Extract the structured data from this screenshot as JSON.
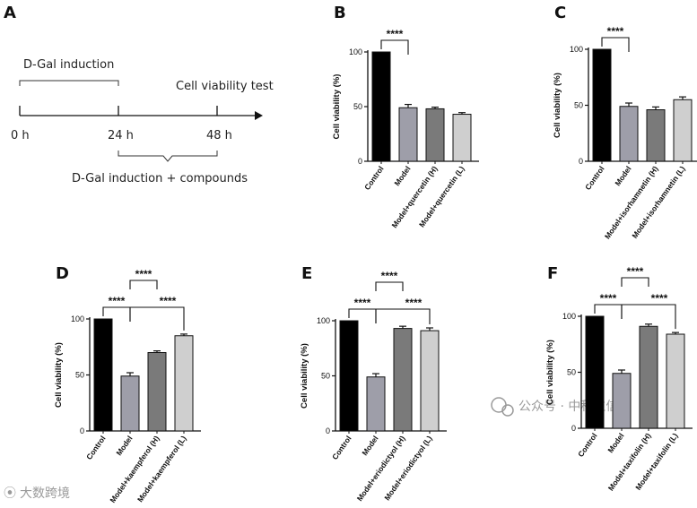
{
  "timeline": {
    "panel_label": "A",
    "induction_label": "D-Gal induction",
    "test_label": "Cell viability test",
    "times": [
      "0 h",
      "24 h",
      "48 h"
    ],
    "combo_label": "D-Gal induction + compounds"
  },
  "chart_data": [
    {
      "panel": "B",
      "type": "bar",
      "ylabel": "Cell viability (%)",
      "ylim": [
        0,
        100
      ],
      "yticks": [
        0,
        50,
        100
      ],
      "categories": [
        "Control",
        "Model",
        "Model+quercetin (H)",
        "Model+quercetin (L)"
      ],
      "values": [
        100,
        49,
        48,
        43
      ],
      "errors": [
        0,
        3,
        1.5,
        1.5
      ],
      "colors": [
        "#000000",
        "#9e9ea9",
        "#7a7a7a",
        "#cfcfcf"
      ],
      "significance": [
        {
          "from": 0,
          "to": 1,
          "label": "****"
        }
      ]
    },
    {
      "panel": "C",
      "type": "bar",
      "ylabel": "Cell viability (%)",
      "ylim": [
        0,
        100
      ],
      "yticks": [
        0,
        50,
        100
      ],
      "categories": [
        "Control",
        "Model",
        "Model+isorhamnetin (H)",
        "Model+isorhamnetin (L)"
      ],
      "values": [
        100,
        49,
        46,
        55
      ],
      "errors": [
        0,
        3,
        2.5,
        2.5
      ],
      "colors": [
        "#000000",
        "#9e9ea9",
        "#7a7a7a",
        "#cfcfcf"
      ],
      "significance": [
        {
          "from": 0,
          "to": 1,
          "label": "****"
        }
      ]
    },
    {
      "panel": "D",
      "type": "bar",
      "ylabel": "Cell viability (%)",
      "ylim": [
        0,
        100
      ],
      "yticks": [
        0,
        50,
        100
      ],
      "categories": [
        "Control",
        "Model",
        "Model+kaempferol (H)",
        "Model+kaempferol (L)"
      ],
      "values": [
        100,
        49,
        70,
        85
      ],
      "errors": [
        0,
        3,
        1.5,
        1.5
      ],
      "colors": [
        "#000000",
        "#9e9ea9",
        "#7a7a7a",
        "#cfcfcf"
      ],
      "significance": [
        {
          "from": 0,
          "to": 1,
          "label": "****"
        },
        {
          "from": 1,
          "to": 3,
          "label": "****"
        },
        {
          "from": 1,
          "to": 2,
          "label": "****"
        }
      ]
    },
    {
      "panel": "E",
      "type": "bar",
      "ylabel": "Cell viability (%)",
      "ylim": [
        0,
        100
      ],
      "yticks": [
        0,
        50,
        100
      ],
      "categories": [
        "Control",
        "Model",
        "Model+eriodictyol (H)",
        "Model+eriodictyol (L)"
      ],
      "values": [
        100,
        49,
        93,
        91
      ],
      "errors": [
        0,
        3,
        2,
        2.5
      ],
      "colors": [
        "#000000",
        "#9e9ea9",
        "#7a7a7a",
        "#cfcfcf"
      ],
      "significance": [
        {
          "from": 0,
          "to": 1,
          "label": "****"
        },
        {
          "from": 1,
          "to": 3,
          "label": "****"
        },
        {
          "from": 1,
          "to": 2,
          "label": "****"
        }
      ]
    },
    {
      "panel": "F",
      "type": "bar",
      "ylabel": "Cell viability (%)",
      "ylim": [
        0,
        100
      ],
      "yticks": [
        0,
        50,
        100
      ],
      "categories": [
        "Control",
        "Model",
        "Model+taxifolin (H)",
        "Model+taxifolin (L)"
      ],
      "values": [
        100,
        49,
        91,
        84
      ],
      "errors": [
        0,
        3,
        2,
        1.5
      ],
      "colors": [
        "#000000",
        "#9e9ea9",
        "#7a7a7a",
        "#cfcfcf"
      ],
      "significance": [
        {
          "from": 0,
          "to": 1,
          "label": "****"
        },
        {
          "from": 1,
          "to": 3,
          "label": "****"
        },
        {
          "from": 1,
          "to": 2,
          "label": "****"
        }
      ]
    }
  ],
  "watermark": {
    "left": "大数跨境",
    "right": "公众号 · 中科生信"
  }
}
